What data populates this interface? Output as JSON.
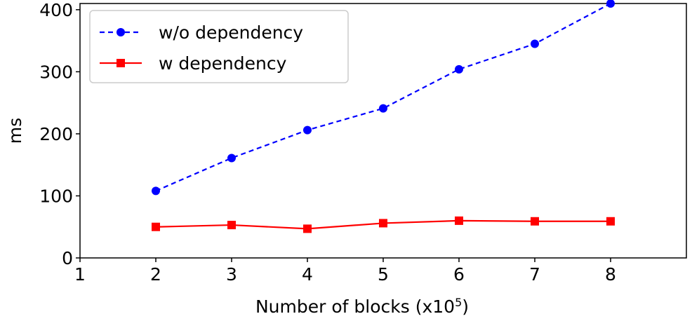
{
  "chart_data": {
    "type": "line",
    "xlabel": "Number of blocks (x10",
    "xlabel_superscript": "5",
    "xlabel_suffix": ")",
    "ylabel": "ms",
    "xlim": [
      1,
      9
    ],
    "ylim": [
      0,
      410
    ],
    "xticks": [
      1,
      2,
      3,
      4,
      5,
      6,
      7,
      8
    ],
    "yticks": [
      0,
      100,
      200,
      300,
      400
    ],
    "grid": false,
    "legend_position": "top-left",
    "series": [
      {
        "name": "w/o dependency",
        "color": "#0000ff",
        "line_style": "dashed",
        "marker": "circle",
        "x": [
          2,
          3,
          4,
          5,
          6,
          7,
          8
        ],
        "y": [
          108,
          161,
          206,
          241,
          304,
          345,
          410
        ]
      },
      {
        "name": "w dependency",
        "color": "#ff0000",
        "line_style": "solid",
        "marker": "square",
        "x": [
          2,
          3,
          4,
          5,
          6,
          7,
          8
        ],
        "y": [
          50,
          53,
          47,
          56,
          60,
          59,
          59
        ]
      }
    ]
  }
}
